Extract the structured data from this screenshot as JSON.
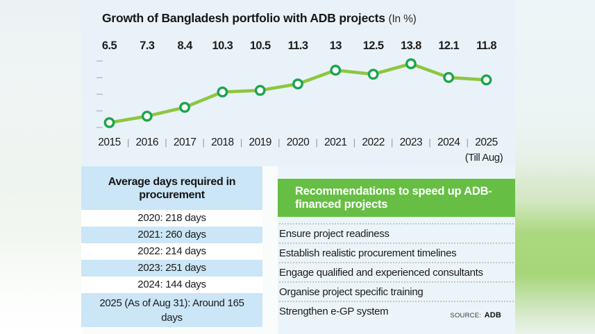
{
  "chart": {
    "title": "Growth of Bangladesh portfolio with ADB projects",
    "title_suffix": "(In %)",
    "x_note": "(Till Aug)"
  },
  "chart_data": {
    "type": "line",
    "title": "Growth of Bangladesh portfolio with ADB projects (In %)",
    "categories": [
      "2015",
      "2016",
      "2017",
      "2018",
      "2019",
      "2020",
      "2021",
      "2022",
      "2023",
      "2024",
      "2025"
    ],
    "values": [
      6.5,
      7.3,
      8.4,
      10.3,
      10.5,
      11.3,
      13,
      12.5,
      13.8,
      12.1,
      11.8
    ],
    "x_note_under_last_category": "(Till Aug)",
    "xlabel": "",
    "ylabel": "",
    "ylim": [
      6,
      14.5
    ],
    "y_tick_count": 5,
    "grid": false,
    "legend": false,
    "data_labels_position": "top-row",
    "line_color": "#8dc63f",
    "marker_stroke": "#1ca450",
    "marker_fill": "#ffffff"
  },
  "table": {
    "header": "Average days required in procurement",
    "rows": [
      "2020: 218 days",
      "2021: 260 days",
      "2022: 214 days",
      "2023: 251 days",
      "2024: 144 days",
      "2025 (As of Aug 31): Around 165 days"
    ]
  },
  "recommendations": {
    "header": "Recommendations to speed up ADB-financed projects",
    "items": [
      "Ensure project readiness",
      "Establish realistic procurement timelines",
      "Engage qualified and experienced consultants",
      "Organise project specific training",
      "Strengthen e-GP system"
    ]
  },
  "source": {
    "label": "SOURCE:",
    "value": "ADB"
  },
  "colors": {
    "accent_green": "#66bf44",
    "line_green": "#8dc63f",
    "marker_green": "#1ca450",
    "panel_blue": "#e9f2f8",
    "stripe_blue": "#cbe6f6"
  }
}
